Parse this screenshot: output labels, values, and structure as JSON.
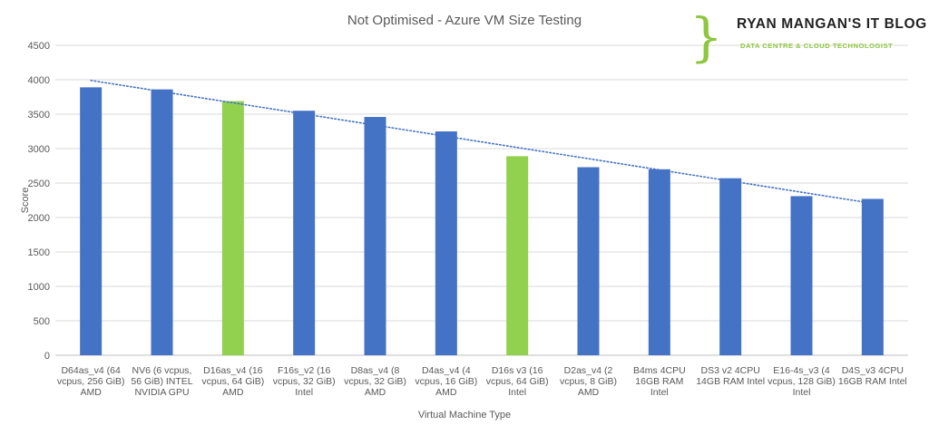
{
  "logo": {
    "title": "RYAN MANGAN'S IT BLOG",
    "subtitle": "DATA CENTRE & CLOUD TECHNOLOGIST",
    "brace": "}"
  },
  "chart_data": {
    "type": "bar",
    "title": "Not Optimised - Azure VM Size Testing",
    "xlabel": "Virtual Machine Type",
    "ylabel": "Score",
    "ylim": [
      0,
      4500
    ],
    "yticks": [
      0,
      500,
      1000,
      1500,
      2000,
      2500,
      3000,
      3500,
      4000,
      4500
    ],
    "grid": true,
    "legend": "none",
    "trendline": {
      "type": "linear",
      "style": "dotted",
      "color": "#4472c4"
    },
    "colors": {
      "default": "#4472c4",
      "highlight": "#92d050"
    },
    "categories": [
      [
        "D64as_v4 (64",
        "vcpus, 256 GiB)",
        "AMD"
      ],
      [
        "NV6 (6 vcpus,",
        "56 GiB) INTEL",
        "NVIDIA GPU"
      ],
      [
        "D16as_v4 (16",
        "vcpus, 64 GiB)",
        "AMD"
      ],
      [
        "F16s_v2 (16",
        "vcpus, 32 GiB)",
        "Intel"
      ],
      [
        "D8as_v4 (8",
        "vcpus, 32 GiB)",
        "AMD"
      ],
      [
        "D4as_v4 (4",
        "vcpus, 16 GiB)",
        "AMD"
      ],
      [
        "D16s v3 (16",
        "vcpus, 64 GiB)",
        "Intel"
      ],
      [
        "D2as_v4 (2",
        "vcpus, 8 GiB)",
        "AMD"
      ],
      [
        "B4ms 4CPU",
        "16GB RAM",
        "Intel"
      ],
      [
        "DS3 v2  4CPU",
        "14GB RAM  Intel"
      ],
      [
        "E16-4s_v3 (4",
        "vcpus, 128 GiB)",
        "Intel"
      ],
      [
        "D4S_v3 4CPU",
        "16GB RAM Intel"
      ]
    ],
    "values": [
      3890,
      3860,
      3690,
      3550,
      3460,
      3250,
      2890,
      2730,
      2700,
      2570,
      2310,
      2270
    ],
    "highlight": [
      false,
      false,
      true,
      false,
      false,
      false,
      true,
      false,
      false,
      false,
      false,
      false
    ]
  }
}
